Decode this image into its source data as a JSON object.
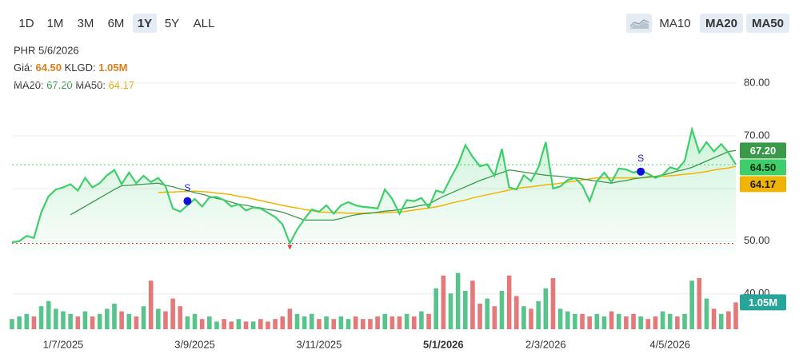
{
  "toolbar": {
    "ranges": [
      "1D",
      "1M",
      "3M",
      "6M",
      "1Y",
      "5Y",
      "ALL"
    ],
    "selected": 4,
    "indicators": [
      {
        "label": "MA10",
        "active": false
      },
      {
        "label": "MA20",
        "active": true
      },
      {
        "label": "MA50",
        "active": true
      }
    ]
  },
  "info": {
    "title": "PHR 5/6/2026",
    "price_label": "Giá:",
    "price": "64.50",
    "volume_label": "KLGD:",
    "volume": "1.05M",
    "ma20_label": "MA20:",
    "ma20": "67.20",
    "ma50_label": "MA50:",
    "ma50": "64.17"
  },
  "chart_data": {
    "type": "stock",
    "xlim": [
      0,
      99
    ],
    "xticks": [
      {
        "value": 7,
        "label": "1/7/2025"
      },
      {
        "value": 25,
        "label": "3/9/2025"
      },
      {
        "value": 42,
        "label": "3/11/2025"
      },
      {
        "value": 59,
        "label": "5/1/2026"
      },
      {
        "value": 73,
        "label": "2/3/2026"
      },
      {
        "value": 90,
        "label": "4/5/2026"
      }
    ],
    "xtick_bold": 3,
    "ylim": [
      33.3,
      82.1
    ],
    "yticks": [
      {
        "value": 40,
        "label": "40.00"
      },
      {
        "value": 50,
        "label": "50.00"
      },
      {
        "value": 60,
        "label": "60.00"
      },
      {
        "value": 70,
        "label": "70.00"
      },
      {
        "value": 80,
        "label": "80.00"
      }
    ],
    "grid": true,
    "price": {
      "color": "#3ecf6a",
      "last_label": "64.50",
      "values": [
        49.8,
        50.0,
        51.0,
        50.6,
        55.5,
        58.5,
        59.8,
        60.2,
        60.8,
        59.6,
        62.0,
        60.2,
        61.0,
        62.5,
        63.5,
        60.8,
        63.0,
        61.0,
        62.4,
        61.2,
        62.0,
        60.4,
        56.2,
        55.6,
        56.8,
        58.0,
        56.6,
        58.3,
        58.4,
        57.8,
        56.6,
        57.0,
        55.8,
        56.4,
        56.2,
        55.4,
        54.6,
        53.2,
        49.6,
        52.2,
        54.2,
        56.0,
        55.6,
        56.8,
        55.2,
        56.8,
        57.4,
        56.8,
        56.5,
        56.4,
        56.2,
        59.8,
        58.0,
        55.2,
        57.8,
        57.6,
        58.2,
        56.4,
        59.6,
        59.2,
        62.0,
        64.5,
        68.2,
        66.0,
        64.2,
        64.6,
        62.4,
        67.5,
        60.2,
        59.8,
        62.5,
        61.4,
        64.0,
        68.8,
        60.0,
        60.4,
        61.6,
        62.0,
        60.6,
        57.6,
        61.4,
        63.0,
        61.2,
        63.8,
        63.6,
        63.0,
        63.4,
        62.8,
        62.0,
        62.6,
        64.0,
        63.6,
        65.2,
        71.2,
        66.8,
        68.8,
        67.0,
        68.4,
        66.8,
        64.5
      ]
    },
    "ma20": {
      "color": "#3a9a4a",
      "last_label": "67.20",
      "values": [
        null,
        null,
        null,
        null,
        null,
        null,
        null,
        null,
        55.0,
        55.8,
        56.6,
        57.4,
        58.2,
        59.0,
        59.8,
        60.5,
        60.6,
        60.7,
        60.8,
        60.9,
        61.0,
        60.6,
        60.3,
        59.9,
        59.6,
        59.2,
        58.9,
        58.5,
        58.1,
        57.8,
        57.4,
        57.0,
        56.8,
        56.5,
        56.3,
        56.0,
        55.8,
        55.5,
        55.0,
        54.5,
        54.0,
        54.0,
        54.0,
        54.0,
        54.0,
        54.3,
        54.7,
        55.0,
        55.2,
        55.3,
        55.5,
        55.7,
        55.8,
        56.0,
        56.3,
        56.5,
        56.8,
        57.0,
        57.8,
        58.5,
        59.1,
        59.7,
        60.3,
        60.9,
        61.5,
        62.0,
        62.5,
        63.0,
        63.5,
        63.3,
        63.1,
        62.9,
        62.7,
        62.5,
        62.4,
        62.3,
        62.1,
        62.0,
        61.8,
        61.6,
        61.4,
        61.2,
        61.0,
        61.3,
        61.5,
        61.8,
        62.0,
        62.2,
        62.3,
        62.5,
        62.9,
        63.3,
        63.6,
        64.0,
        64.6,
        65.2,
        65.8,
        66.4,
        67.0,
        67.2
      ]
    },
    "ma50": {
      "color": "#f0b400",
      "last_label": "64.17",
      "values": [
        null,
        null,
        null,
        null,
        null,
        null,
        null,
        null,
        null,
        null,
        null,
        null,
        null,
        null,
        null,
        null,
        null,
        null,
        null,
        null,
        59.2,
        59.3,
        59.3,
        59.4,
        59.4,
        59.5,
        59.4,
        59.3,
        59.1,
        59.0,
        58.8,
        58.5,
        58.3,
        58.0,
        57.7,
        57.4,
        57.1,
        56.8,
        56.5,
        56.3,
        56.0,
        55.8,
        55.5,
        55.5,
        55.4,
        55.4,
        55.3,
        55.3,
        55.3,
        55.4,
        55.4,
        55.4,
        55.5,
        55.5,
        55.7,
        55.9,
        56.1,
        56.3,
        56.5,
        56.8,
        57.2,
        57.5,
        57.8,
        58.2,
        58.5,
        58.8,
        59.1,
        59.4,
        59.7,
        60.0,
        60.2,
        60.3,
        60.5,
        60.7,
        60.8,
        61.0,
        61.2,
        61.4,
        61.6,
        61.8,
        62.0,
        62.0,
        62.0,
        62.0,
        62.0,
        62.0,
        62.0,
        62.1,
        62.2,
        62.3,
        62.4,
        62.5,
        62.7,
        62.8,
        63.0,
        63.2,
        63.5,
        63.7,
        63.9,
        64.17
      ]
    },
    "volume": {
      "up_color": "#3cb878",
      "down_color": "#e06060",
      "badge_color": "#26a69a",
      "ylim": [
        0,
        2.5
      ],
      "last_label": "1.05M",
      "values": [
        0.4,
        0.5,
        0.6,
        0.5,
        0.9,
        1.1,
        0.8,
        0.7,
        0.6,
        0.5,
        0.7,
        0.5,
        0.6,
        0.8,
        1.0,
        0.7,
        0.6,
        0.5,
        0.9,
        1.9,
        0.8,
        0.7,
        1.2,
        0.9,
        0.5,
        0.6,
        0.4,
        0.5,
        0.3,
        0.4,
        0.3,
        0.4,
        0.3,
        0.3,
        0.4,
        0.3,
        0.4,
        0.5,
        0.8,
        0.6,
        0.5,
        0.6,
        0.4,
        0.5,
        0.4,
        0.5,
        0.4,
        0.5,
        0.4,
        0.4,
        0.5,
        0.6,
        0.5,
        0.5,
        0.6,
        0.5,
        0.7,
        0.6,
        1.6,
        2.1,
        1.4,
        2.2,
        1.5,
        1.9,
        1.0,
        1.2,
        0.9,
        1.5,
        2.1,
        1.3,
        0.9,
        0.8,
        1.1,
        1.6,
        2.0,
        0.8,
        0.7,
        0.6,
        0.6,
        0.5,
        0.6,
        0.5,
        0.7,
        0.6,
        0.5,
        0.6,
        0.5,
        0.4,
        0.5,
        0.7,
        0.6,
        0.5,
        0.6,
        1.9,
        2.0,
        1.2,
        0.8,
        0.6,
        0.7,
        1.05
      ]
    },
    "signals": [
      {
        "x": 24,
        "value": 57.6,
        "label": "S"
      },
      {
        "x": 86,
        "value": 63.2,
        "label": "S"
      }
    ],
    "signal_color": "#1010dd",
    "low_color": "#e53935"
  }
}
